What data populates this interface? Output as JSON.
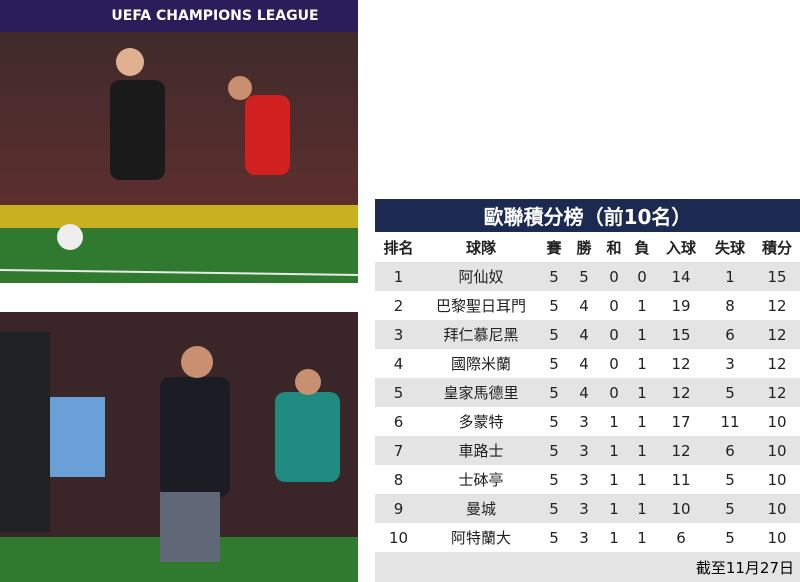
{
  "photo_top": {
    "banner": "UEFA CHAMPIONS LEAGUE"
  },
  "table": {
    "title": "歐聯積分榜（前10名）",
    "header": [
      "排名",
      "球隊",
      "賽",
      "勝",
      "和",
      "負",
      "入球",
      "失球",
      "積分"
    ],
    "rows": [
      [
        "1",
        "阿仙奴",
        "5",
        "5",
        "0",
        "0",
        "14",
        "1",
        "15"
      ],
      [
        "2",
        "巴黎聖日耳門",
        "5",
        "4",
        "0",
        "1",
        "19",
        "8",
        "12"
      ],
      [
        "3",
        "拜仁慕尼黑",
        "5",
        "4",
        "0",
        "1",
        "15",
        "6",
        "12"
      ],
      [
        "4",
        "國際米蘭",
        "5",
        "4",
        "0",
        "1",
        "12",
        "3",
        "12"
      ],
      [
        "5",
        "皇家馬德里",
        "5",
        "4",
        "0",
        "1",
        "12",
        "5",
        "12"
      ],
      [
        "6",
        "多蒙特",
        "5",
        "3",
        "1",
        "1",
        "17",
        "11",
        "10"
      ],
      [
        "7",
        "車路士",
        "5",
        "3",
        "1",
        "1",
        "12",
        "6",
        "10"
      ],
      [
        "8",
        "士砵亭",
        "5",
        "3",
        "1",
        "1",
        "11",
        "5",
        "10"
      ],
      [
        "9",
        "曼城",
        "5",
        "3",
        "1",
        "1",
        "10",
        "5",
        "10"
      ],
      [
        "10",
        "阿特蘭大",
        "5",
        "3",
        "1",
        "1",
        "6",
        "5",
        "10"
      ]
    ],
    "footnote": "截至11月27日"
  }
}
